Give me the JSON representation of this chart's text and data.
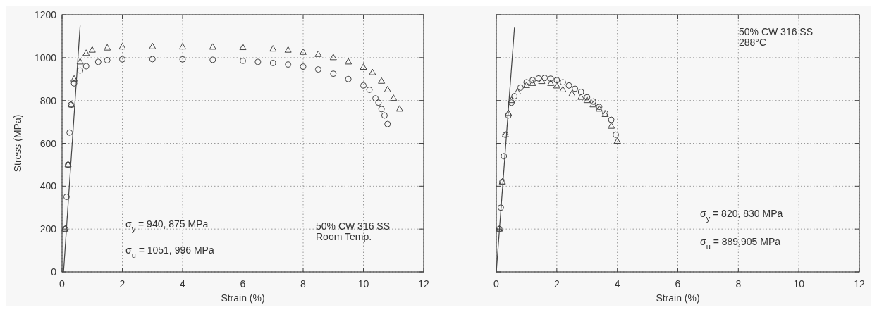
{
  "chart_data": [
    {
      "type": "scatter",
      "xlabel": "Strain (%)",
      "ylabel": "Stress (MPa)",
      "xlim": [
        0,
        12
      ],
      "ylim": [
        0,
        1200
      ],
      "xticks": [
        0,
        2,
        4,
        6,
        8,
        10,
        12
      ],
      "yticks": [
        0,
        200,
        400,
        600,
        800,
        1000,
        1200
      ],
      "grid": true,
      "annotations": [
        "σ$_{y}$ = 940, 875 MPa",
        "σ$_{u}$ = 1051, 996 MPa",
        "50% CW 316 SS\nRoom Temp."
      ],
      "series": [
        {
          "marker": "circle",
          "color": "#444444",
          "x": [
            0.1,
            0.15,
            0.2,
            0.25,
            0.3,
            0.4,
            0.6,
            0.8,
            1.2,
            1.5,
            2,
            3,
            4,
            5,
            6,
            6.5,
            7,
            7.5,
            8,
            8.5,
            9,
            9.5,
            10,
            10.2,
            10.4,
            10.5,
            10.6,
            10.7,
            10.8
          ],
          "values": [
            200,
            350,
            500,
            650,
            780,
            880,
            940,
            960,
            980,
            988,
            992,
            993,
            992,
            990,
            985,
            980,
            975,
            968,
            958,
            945,
            925,
            900,
            870,
            850,
            810,
            790,
            760,
            730,
            690
          ]
        },
        {
          "marker": "triangle",
          "color": "#444444",
          "x": [
            0.1,
            0.2,
            0.3,
            0.4,
            0.6,
            0.8,
            1,
            1.5,
            2,
            3,
            4,
            5,
            6,
            7,
            7.5,
            8,
            8.5,
            9,
            9.5,
            10,
            10.3,
            10.6,
            10.8,
            11,
            11.2
          ],
          "values": [
            200,
            500,
            780,
            900,
            980,
            1020,
            1035,
            1045,
            1050,
            1051,
            1050,
            1049,
            1047,
            1040,
            1035,
            1025,
            1015,
            1000,
            980,
            955,
            930,
            890,
            850,
            810,
            760
          ]
        },
        {
          "type": "line",
          "line_style": "solid",
          "color": "#444444",
          "x": [
            0.05,
            0.6
          ],
          "values": [
            0,
            1150
          ]
        }
      ]
    },
    {
      "type": "scatter",
      "xlabel": "Strain (%)",
      "xlim": [
        0,
        12
      ],
      "ylim": [
        0,
        1200
      ],
      "xticks": [
        0,
        2,
        4,
        6,
        8,
        10,
        12
      ],
      "yticks": [
        0,
        200,
        400,
        600,
        800,
        1000,
        1200
      ],
      "tick_labels": "x",
      "grid": true,
      "annotations": [
        "50% CW 316 SS\n288°C",
        "σ$_{y}$ = 820, 830 MPa",
        "σ$_{u}$ = 889,905 MPa"
      ],
      "series": [
        {
          "marker": "circle",
          "color": "#444444",
          "x": [
            0.1,
            0.15,
            0.2,
            0.25,
            0.3,
            0.4,
            0.5,
            0.6,
            0.8,
            1,
            1.2,
            1.4,
            1.6,
            1.8,
            2,
            2.2,
            2.4,
            2.6,
            2.8,
            3,
            3.2,
            3.4,
            3.6,
            3.8,
            3.95
          ],
          "values": [
            200,
            300,
            420,
            540,
            640,
            730,
            790,
            820,
            860,
            885,
            895,
            903,
            905,
            902,
            895,
            885,
            870,
            855,
            840,
            815,
            795,
            770,
            740,
            710,
            640
          ]
        },
        {
          "marker": "triangle",
          "color": "#444444",
          "x": [
            0.1,
            0.2,
            0.3,
            0.4,
            0.5,
            0.7,
            1,
            1.2,
            1.5,
            1.8,
            2,
            2.2,
            2.5,
            2.8,
            3,
            3.2,
            3.4,
            3.6,
            3.8,
            4
          ],
          "values": [
            200,
            420,
            640,
            740,
            800,
            840,
            870,
            880,
            889,
            880,
            868,
            850,
            830,
            815,
            800,
            780,
            760,
            735,
            680,
            610
          ]
        },
        {
          "type": "line",
          "line_style": "solid",
          "color": "#444444",
          "x": [
            0,
            0.6
          ],
          "values": [
            0,
            1140
          ]
        }
      ]
    }
  ]
}
